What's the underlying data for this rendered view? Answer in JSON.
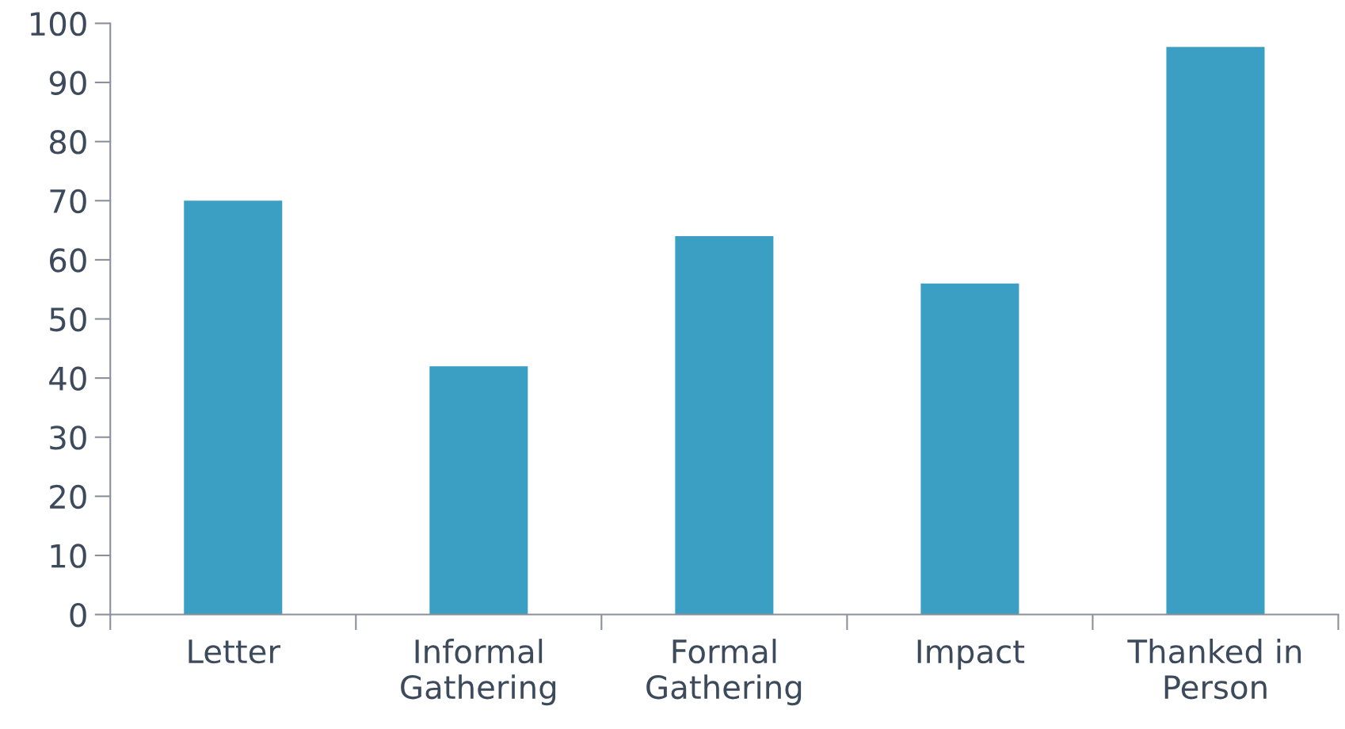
{
  "chart_data": {
    "type": "bar",
    "categories": [
      "Letter",
      "Informal\nGathering",
      "Formal\nGathering",
      "Impact",
      "Thanked in\nPerson"
    ],
    "values": [
      70,
      42,
      64,
      56,
      96
    ],
    "color": "#3a9fc2",
    "ylim": [
      0,
      100
    ],
    "yticks": [
      0,
      10,
      20,
      30,
      40,
      50,
      60,
      70,
      80,
      90,
      100
    ],
    "grid": false,
    "legend": false
  }
}
